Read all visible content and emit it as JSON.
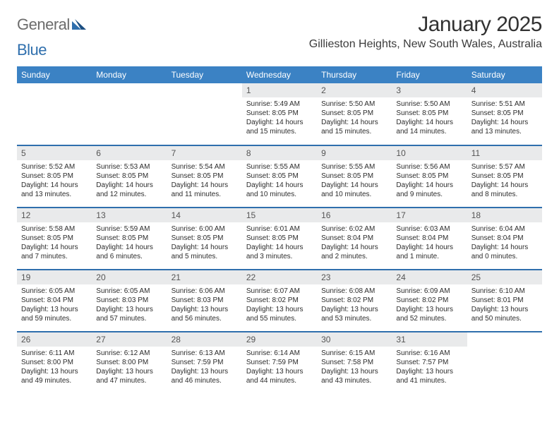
{
  "brand": {
    "part1": "General",
    "part2": "Blue"
  },
  "title": "January 2025",
  "location": "Gillieston Heights, New South Wales, Australia",
  "colors": {
    "header_bg": "#3b82c4",
    "header_text": "#ffffff",
    "row_divider": "#2f6fad",
    "daynum_bg": "#e9eaeb",
    "daynum_text": "#555555",
    "body_text": "#2c2c2c",
    "logo_gray": "#6c6c6c",
    "logo_blue": "#2f6fad",
    "title_color": "#323232"
  },
  "day_headers": [
    "Sunday",
    "Monday",
    "Tuesday",
    "Wednesday",
    "Thursday",
    "Friday",
    "Saturday"
  ],
  "weeks": [
    [
      {
        "n": "",
        "lines": []
      },
      {
        "n": "",
        "lines": []
      },
      {
        "n": "",
        "lines": []
      },
      {
        "n": "1",
        "lines": [
          "Sunrise: 5:49 AM",
          "Sunset: 8:05 PM",
          "Daylight: 14 hours",
          "and 15 minutes."
        ]
      },
      {
        "n": "2",
        "lines": [
          "Sunrise: 5:50 AM",
          "Sunset: 8:05 PM",
          "Daylight: 14 hours",
          "and 15 minutes."
        ]
      },
      {
        "n": "3",
        "lines": [
          "Sunrise: 5:50 AM",
          "Sunset: 8:05 PM",
          "Daylight: 14 hours",
          "and 14 minutes."
        ]
      },
      {
        "n": "4",
        "lines": [
          "Sunrise: 5:51 AM",
          "Sunset: 8:05 PM",
          "Daylight: 14 hours",
          "and 13 minutes."
        ]
      }
    ],
    [
      {
        "n": "5",
        "lines": [
          "Sunrise: 5:52 AM",
          "Sunset: 8:05 PM",
          "Daylight: 14 hours",
          "and 13 minutes."
        ]
      },
      {
        "n": "6",
        "lines": [
          "Sunrise: 5:53 AM",
          "Sunset: 8:05 PM",
          "Daylight: 14 hours",
          "and 12 minutes."
        ]
      },
      {
        "n": "7",
        "lines": [
          "Sunrise: 5:54 AM",
          "Sunset: 8:05 PM",
          "Daylight: 14 hours",
          "and 11 minutes."
        ]
      },
      {
        "n": "8",
        "lines": [
          "Sunrise: 5:55 AM",
          "Sunset: 8:05 PM",
          "Daylight: 14 hours",
          "and 10 minutes."
        ]
      },
      {
        "n": "9",
        "lines": [
          "Sunrise: 5:55 AM",
          "Sunset: 8:05 PM",
          "Daylight: 14 hours",
          "and 10 minutes."
        ]
      },
      {
        "n": "10",
        "lines": [
          "Sunrise: 5:56 AM",
          "Sunset: 8:05 PM",
          "Daylight: 14 hours",
          "and 9 minutes."
        ]
      },
      {
        "n": "11",
        "lines": [
          "Sunrise: 5:57 AM",
          "Sunset: 8:05 PM",
          "Daylight: 14 hours",
          "and 8 minutes."
        ]
      }
    ],
    [
      {
        "n": "12",
        "lines": [
          "Sunrise: 5:58 AM",
          "Sunset: 8:05 PM",
          "Daylight: 14 hours",
          "and 7 minutes."
        ]
      },
      {
        "n": "13",
        "lines": [
          "Sunrise: 5:59 AM",
          "Sunset: 8:05 PM",
          "Daylight: 14 hours",
          "and 6 minutes."
        ]
      },
      {
        "n": "14",
        "lines": [
          "Sunrise: 6:00 AM",
          "Sunset: 8:05 PM",
          "Daylight: 14 hours",
          "and 5 minutes."
        ]
      },
      {
        "n": "15",
        "lines": [
          "Sunrise: 6:01 AM",
          "Sunset: 8:05 PM",
          "Daylight: 14 hours",
          "and 3 minutes."
        ]
      },
      {
        "n": "16",
        "lines": [
          "Sunrise: 6:02 AM",
          "Sunset: 8:04 PM",
          "Daylight: 14 hours",
          "and 2 minutes."
        ]
      },
      {
        "n": "17",
        "lines": [
          "Sunrise: 6:03 AM",
          "Sunset: 8:04 PM",
          "Daylight: 14 hours",
          "and 1 minute."
        ]
      },
      {
        "n": "18",
        "lines": [
          "Sunrise: 6:04 AM",
          "Sunset: 8:04 PM",
          "Daylight: 14 hours",
          "and 0 minutes."
        ]
      }
    ],
    [
      {
        "n": "19",
        "lines": [
          "Sunrise: 6:05 AM",
          "Sunset: 8:04 PM",
          "Daylight: 13 hours",
          "and 59 minutes."
        ]
      },
      {
        "n": "20",
        "lines": [
          "Sunrise: 6:05 AM",
          "Sunset: 8:03 PM",
          "Daylight: 13 hours",
          "and 57 minutes."
        ]
      },
      {
        "n": "21",
        "lines": [
          "Sunrise: 6:06 AM",
          "Sunset: 8:03 PM",
          "Daylight: 13 hours",
          "and 56 minutes."
        ]
      },
      {
        "n": "22",
        "lines": [
          "Sunrise: 6:07 AM",
          "Sunset: 8:02 PM",
          "Daylight: 13 hours",
          "and 55 minutes."
        ]
      },
      {
        "n": "23",
        "lines": [
          "Sunrise: 6:08 AM",
          "Sunset: 8:02 PM",
          "Daylight: 13 hours",
          "and 53 minutes."
        ]
      },
      {
        "n": "24",
        "lines": [
          "Sunrise: 6:09 AM",
          "Sunset: 8:02 PM",
          "Daylight: 13 hours",
          "and 52 minutes."
        ]
      },
      {
        "n": "25",
        "lines": [
          "Sunrise: 6:10 AM",
          "Sunset: 8:01 PM",
          "Daylight: 13 hours",
          "and 50 minutes."
        ]
      }
    ],
    [
      {
        "n": "26",
        "lines": [
          "Sunrise: 6:11 AM",
          "Sunset: 8:00 PM",
          "Daylight: 13 hours",
          "and 49 minutes."
        ]
      },
      {
        "n": "27",
        "lines": [
          "Sunrise: 6:12 AM",
          "Sunset: 8:00 PM",
          "Daylight: 13 hours",
          "and 47 minutes."
        ]
      },
      {
        "n": "28",
        "lines": [
          "Sunrise: 6:13 AM",
          "Sunset: 7:59 PM",
          "Daylight: 13 hours",
          "and 46 minutes."
        ]
      },
      {
        "n": "29",
        "lines": [
          "Sunrise: 6:14 AM",
          "Sunset: 7:59 PM",
          "Daylight: 13 hours",
          "and 44 minutes."
        ]
      },
      {
        "n": "30",
        "lines": [
          "Sunrise: 6:15 AM",
          "Sunset: 7:58 PM",
          "Daylight: 13 hours",
          "and 43 minutes."
        ]
      },
      {
        "n": "31",
        "lines": [
          "Sunrise: 6:16 AM",
          "Sunset: 7:57 PM",
          "Daylight: 13 hours",
          "and 41 minutes."
        ]
      },
      {
        "n": "",
        "lines": []
      }
    ]
  ]
}
